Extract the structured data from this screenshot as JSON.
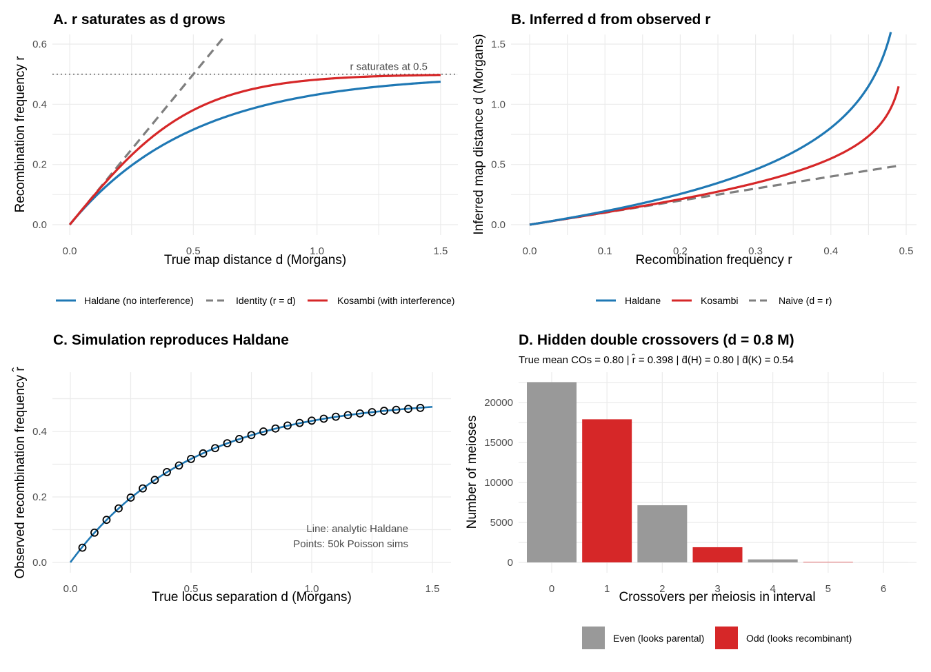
{
  "colors": {
    "haldane": "#1f78b4",
    "kosambi": "#d62728",
    "identity": "#7f7f7f",
    "even": "#999999",
    "odd": "#d62728"
  },
  "chart_data": [
    {
      "type": "line",
      "title": "A. r saturates as d grows",
      "xlabel": "True map distance d (Morgans)",
      "ylabel": "Recombination frequency r",
      "xlim": [
        -0.07,
        1.57
      ],
      "ylim": [
        0,
        0.6
      ],
      "xticks": [
        "0.0",
        "0.5",
        "1.0",
        "1.5"
      ],
      "yticks": [
        "0.0",
        "0.2",
        "0.4",
        "0.6"
      ],
      "hline": {
        "y": 0.5,
        "label": "r saturates at 0.5"
      },
      "series": [
        {
          "name": "Haldane (no interference)",
          "formula": "r = 0.5(1 - e^(-2d))",
          "x_range": [
            0,
            1.5
          ]
        },
        {
          "name": "Identity (r = d)",
          "formula": "r = d",
          "x_range": [
            0,
            1.5
          ]
        },
        {
          "name": "Kosambi (with interference)",
          "formula": "r = 0.5 tanh(2d)",
          "x_range": [
            0,
            1.5
          ]
        }
      ],
      "legend": "bottom"
    },
    {
      "type": "line",
      "title": "B. Inferred d from observed r",
      "xlabel": "Recombination frequency r",
      "ylabel": "Inferred map distance d (Morgans)",
      "xlim": [
        -0.025,
        0.515
      ],
      "ylim": [
        -0.04,
        1.56
      ],
      "xticks": [
        "0.0",
        "0.1",
        "0.2",
        "0.3",
        "0.4",
        "0.5"
      ],
      "yticks": [
        "0.0",
        "0.5",
        "1.0",
        "1.5"
      ],
      "series": [
        {
          "name": "Haldane",
          "formula": "d = -0.5 ln(1 - 2r)",
          "x_range": [
            0,
            0.49
          ]
        },
        {
          "name": "Kosambi",
          "formula": "d = 0.25 ln((1 + 2r)/(1 - 2r))",
          "x_range": [
            0,
            0.49
          ]
        },
        {
          "name": "Naive (d = r)",
          "formula": "d = r",
          "x_range": [
            0,
            0.49
          ]
        }
      ],
      "legend": "bottom"
    },
    {
      "type": "scatter",
      "title": "C. Simulation reproduces Haldane",
      "xlabel": "True locus separation d (Morgans)",
      "ylabel": "Observed recombination frequency r̂",
      "xlim": [
        -0.07,
        1.57
      ],
      "ylim": [
        -0.02,
        0.58
      ],
      "xticks": [
        "0.0",
        "0.5",
        "1.0",
        "1.5"
      ],
      "yticks": [
        "0.0",
        "0.2",
        "0.4"
      ],
      "annotations": [
        "Line: analytic Haldane",
        "Points: 50k Poisson sims"
      ],
      "line": {
        "formula": "r = 0.5(1 - e^(-2d))",
        "x_range": [
          0,
          1.5
        ]
      },
      "points": {
        "x": [
          0.05,
          0.1,
          0.15,
          0.2,
          0.25,
          0.3,
          0.35,
          0.4,
          0.45,
          0.5,
          0.55,
          0.6,
          0.65,
          0.7,
          0.75,
          0.8,
          0.85,
          0.9,
          0.95,
          1.0,
          1.05,
          1.1,
          1.15,
          1.2,
          1.25,
          1.3,
          1.35,
          1.4,
          1.45
        ],
        "y": [
          0.045,
          0.091,
          0.13,
          0.165,
          0.198,
          0.226,
          0.252,
          0.276,
          0.296,
          0.316,
          0.333,
          0.349,
          0.364,
          0.377,
          0.389,
          0.4,
          0.409,
          0.418,
          0.426,
          0.433,
          0.439,
          0.445,
          0.45,
          0.455,
          0.459,
          0.463,
          0.466,
          0.469,
          0.472
        ]
      }
    },
    {
      "type": "bar",
      "title": "D. Hidden double crossovers (d = 0.8 M)",
      "subtitle": "True mean COs = 0.80 | r̂ = 0.398 | d̂(H) = 0.80 | d̂(K) = 0.54",
      "xlabel": "Crossovers per meiosis in interval",
      "ylabel": "Number of meioses",
      "categories": [
        "0",
        "1",
        "2",
        "3",
        "4",
        "5",
        "6"
      ],
      "values": [
        22550,
        17900,
        7150,
        1900,
        380,
        60,
        6
      ],
      "parity": [
        "even",
        "odd",
        "even",
        "odd",
        "even",
        "odd",
        "even"
      ],
      "ylim": [
        0,
        23900
      ],
      "yticks": [
        "0",
        "5000",
        "10000",
        "15000",
        "20000"
      ],
      "legend": "bottom",
      "legend_entries": [
        "Even (looks parental)",
        "Odd (looks recombinant)"
      ]
    }
  ]
}
